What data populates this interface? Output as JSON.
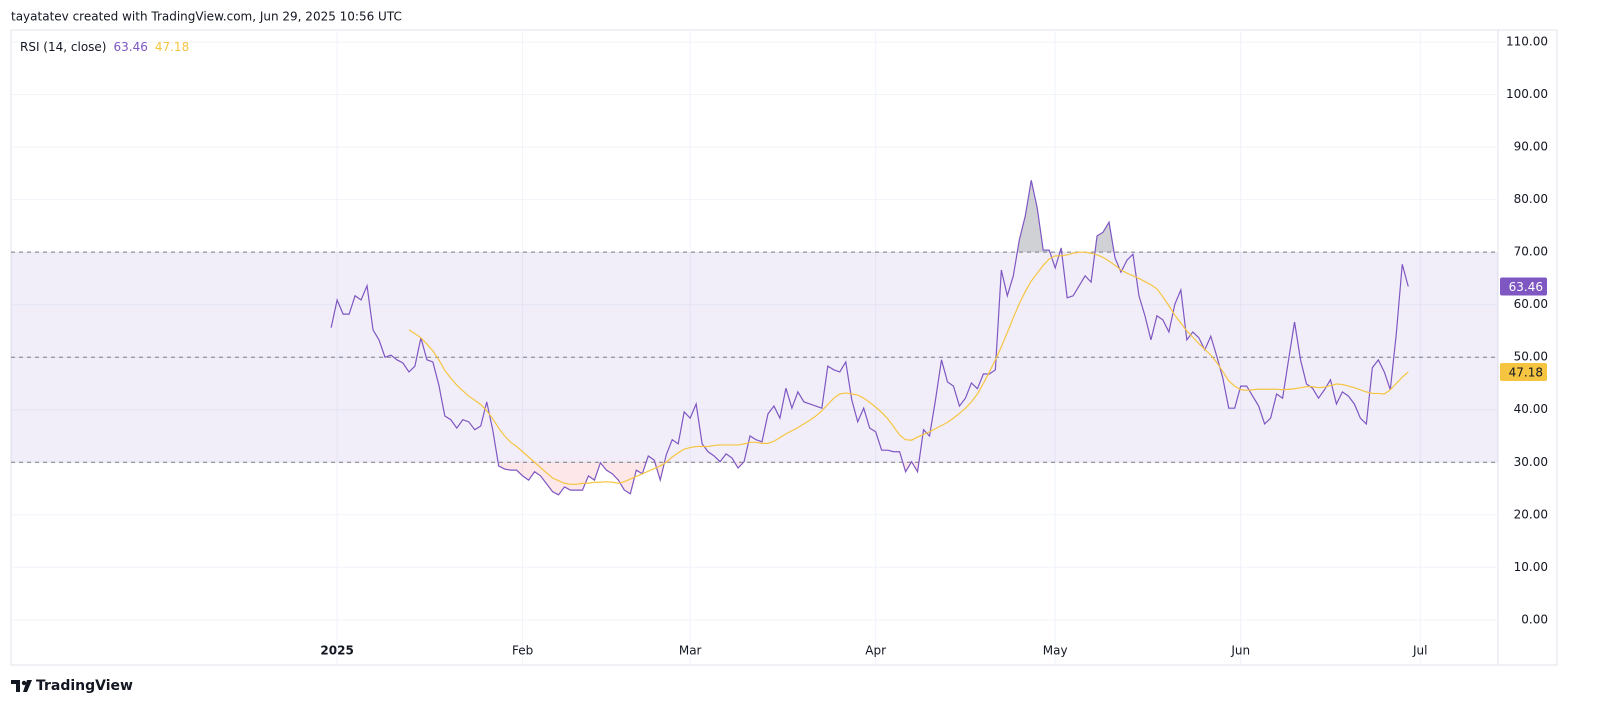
{
  "header": {
    "text": "tayatatev created with TradingView.com, Jun 29, 2025 10:56 UTC"
  },
  "footer": {
    "brand": "TradingView"
  },
  "chart_data": {
    "type": "line",
    "title": "RSI (14, close)",
    "x": [
      -1,
      0,
      1,
      2,
      3,
      4,
      5,
      6,
      7,
      8,
      9,
      10,
      11,
      12,
      13,
      14,
      15,
      16,
      17,
      18,
      19,
      20,
      21,
      22,
      23,
      24,
      25,
      26,
      27,
      28,
      29,
      30,
      31,
      32,
      33,
      34,
      35,
      36,
      37,
      38,
      39,
      40,
      41,
      42,
      43,
      44,
      45,
      46,
      47,
      48,
      49,
      50,
      51,
      52,
      53,
      54,
      55,
      56,
      57,
      58,
      59,
      60,
      61,
      62,
      63,
      64,
      65,
      66,
      67,
      68,
      69,
      70,
      71,
      72,
      73,
      74,
      75,
      76,
      77,
      78,
      79,
      80,
      81,
      82,
      83,
      84,
      85,
      86,
      87,
      88,
      89,
      90,
      91,
      92,
      93,
      94,
      95,
      96,
      97,
      98,
      99,
      100,
      101,
      102,
      103,
      104,
      105,
      106,
      107,
      108,
      109,
      110,
      111,
      112,
      113,
      114,
      115,
      116,
      117,
      118,
      119,
      120,
      121,
      122,
      123,
      124,
      125,
      126,
      127,
      128,
      129,
      130,
      131,
      132,
      133,
      134,
      135,
      136,
      137,
      138,
      139,
      140,
      141,
      142,
      143,
      144,
      145,
      146,
      147,
      148,
      149,
      150,
      151,
      152,
      153,
      154,
      155,
      156,
      157,
      158,
      159,
      160,
      161,
      162,
      163,
      164,
      165,
      166,
      167,
      168,
      169,
      170,
      171,
      172,
      173,
      174,
      175,
      176,
      177,
      178,
      179
    ],
    "xlim": [
      -54.5,
      194
    ],
    "xticks": [
      {
        "value": 0,
        "label": "2025"
      },
      {
        "value": 31,
        "label": "Feb"
      },
      {
        "value": 59,
        "label": "Mar"
      },
      {
        "value": 90,
        "label": "Apr"
      },
      {
        "value": 120,
        "label": "May"
      },
      {
        "value": 151,
        "label": "Jun"
      },
      {
        "value": 181,
        "label": "Jul"
      }
    ],
    "ylim": [
      -8.6,
      112.3
    ],
    "yticks": [
      {
        "value": 0,
        "label": "0.00"
      },
      {
        "value": 10,
        "label": "10.00"
      },
      {
        "value": 20,
        "label": "20.00"
      },
      {
        "value": 30,
        "label": "30.00"
      },
      {
        "value": 40,
        "label": "40.00"
      },
      {
        "value": 50,
        "label": "50.00"
      },
      {
        "value": 60,
        "label": "60.00"
      },
      {
        "value": 70,
        "label": "70.00"
      },
      {
        "value": 80,
        "label": "80.00"
      },
      {
        "value": 90,
        "label": "90.00"
      },
      {
        "value": 100,
        "label": "100.00"
      },
      {
        "value": 110,
        "label": "110.00"
      }
    ],
    "grid": true,
    "levels": [
      70,
      50,
      30
    ],
    "band": [
      30,
      70
    ],
    "band_color": "rgba(126,87,194,0.1)",
    "series": [
      {
        "color": "#7e57c2",
        "values": [
          55.6,
          60.9,
          58.2,
          58.2,
          61.7,
          60.9,
          63.6,
          55.2,
          53.3,
          50.0,
          50.4,
          49.5,
          48.9,
          47.2,
          48.3,
          53.7,
          49.5,
          49.1,
          44.7,
          38.8,
          38.1,
          36.5,
          38.1,
          37.7,
          36.2,
          36.9,
          41.5,
          36.2,
          29.3,
          28.7,
          28.5,
          28.5,
          27.4,
          26.6,
          28.2,
          27.4,
          25.9,
          24.4,
          23.8,
          25.3,
          24.7,
          24.7,
          24.7,
          27.4,
          26.6,
          29.9,
          28.5,
          27.8,
          26.6,
          24.7,
          24.0,
          28.5,
          27.8,
          31.2,
          30.4,
          26.6,
          31.4,
          34.3,
          33.5,
          39.6,
          38.4,
          41.1,
          33.5,
          32.0,
          31.2,
          30.1,
          31.6,
          30.8,
          28.9,
          30.1,
          35.0,
          34.3,
          33.9,
          39.2,
          40.7,
          38.4,
          44.1,
          40.3,
          43.4,
          41.5,
          41.1,
          40.7,
          40.3,
          48.3,
          47.6,
          47.2,
          49.1,
          41.9,
          37.7,
          40.3,
          36.5,
          35.8,
          32.3,
          32.3,
          32.0,
          32.0,
          28.2,
          30.1,
          28.2,
          36.2,
          35.0,
          41.9,
          49.5,
          45.3,
          44.5,
          40.7,
          42.2,
          45.1,
          44.0,
          46.8,
          46.8,
          47.6,
          66.6,
          61.7,
          65.5,
          72.3,
          76.9,
          83.7,
          78.4,
          70.4,
          70.4,
          67.0,
          70.8,
          61.3,
          61.7,
          63.6,
          65.5,
          64.3,
          73.1,
          73.8,
          75.7,
          68.9,
          66.2,
          68.5,
          69.6,
          61.7,
          57.9,
          53.3,
          57.9,
          57.1,
          54.8,
          60.1,
          62.8,
          53.3,
          54.8,
          53.7,
          51.4,
          54.0,
          50.2,
          46.1,
          40.3,
          40.3,
          44.5,
          44.5,
          42.6,
          40.7,
          37.3,
          38.4,
          43.0,
          42.2,
          49.5,
          56.7,
          49.5,
          44.9,
          44.1,
          42.2,
          43.8,
          45.7,
          41.1,
          43.4,
          42.6,
          41.1,
          38.4,
          37.3,
          48.0,
          49.5,
          47.2,
          43.8,
          54.4,
          67.7,
          63.46
        ]
      },
      {
        "color": "#f5c542",
        "values": [
          null,
          null,
          null,
          null,
          null,
          null,
          null,
          null,
          null,
          null,
          null,
          null,
          null,
          55.2,
          54.5,
          53.7,
          52.5,
          51.2,
          49.5,
          47.5,
          46.0,
          44.7,
          43.6,
          42.6,
          41.8,
          41.0,
          39.8,
          38.3,
          36.5,
          35.0,
          33.8,
          33.0,
          32.0,
          31.0,
          30.0,
          29.0,
          28.0,
          27.0,
          26.5,
          26.0,
          25.8,
          25.8,
          26.0,
          26.0,
          26.2,
          26.2,
          26.3,
          26.2,
          26.0,
          26.3,
          26.8,
          27.3,
          27.8,
          28.3,
          28.8,
          29.3,
          30.0,
          31.0,
          31.8,
          32.5,
          32.8,
          33.0,
          33.0,
          33.0,
          33.2,
          33.3,
          33.3,
          33.3,
          33.3,
          33.5,
          33.8,
          33.8,
          33.6,
          33.6,
          34.0,
          34.7,
          35.4,
          36.0,
          36.6,
          37.3,
          38.0,
          38.8,
          39.8,
          41.0,
          42.2,
          43.0,
          43.2,
          43.0,
          42.8,
          42.2,
          41.4,
          40.5,
          39.5,
          38.3,
          36.8,
          35.2,
          34.3,
          34.2,
          34.8,
          35.3,
          35.8,
          36.4,
          37.0,
          37.6,
          38.4,
          39.3,
          40.3,
          41.5,
          43.0,
          45.0,
          47.2,
          49.5,
          52.0,
          54.7,
          57.5,
          60.2,
          62.5,
          64.5,
          66.0,
          67.5,
          68.7,
          69.3,
          69.3,
          69.5,
          69.8,
          70.0,
          70.0,
          69.8,
          69.5,
          69.0,
          68.3,
          67.5,
          66.6,
          66.0,
          65.5,
          65.0,
          64.4,
          63.8,
          63.0,
          61.5,
          59.8,
          58.0,
          56.5,
          55.0,
          53.8,
          52.6,
          51.5,
          50.4,
          49.0,
          47.3,
          45.5,
          44.5,
          43.8,
          43.7,
          43.8,
          43.9,
          43.9,
          43.9,
          43.9,
          43.8,
          43.9,
          44.0,
          44.2,
          44.4,
          44.4,
          44.2,
          44.3,
          44.6,
          44.9,
          44.8,
          44.5,
          44.2,
          43.8,
          43.4,
          43.1,
          43.1,
          43.0,
          43.8,
          45.0,
          46.2,
          47.18
        ]
      }
    ]
  }
}
